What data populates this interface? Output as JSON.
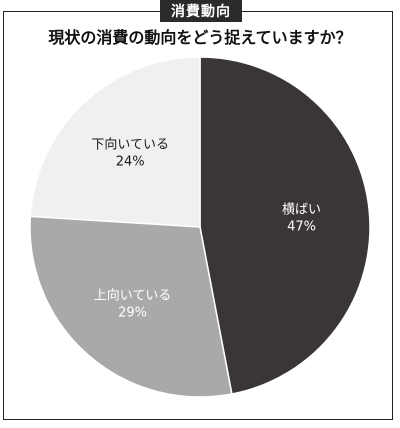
{
  "header": {
    "tag": "消費動向",
    "question": "現状の消費の動向をどう捉えていますか？"
  },
  "chart_data": {
    "type": "pie",
    "start_angle_deg": 0,
    "direction": "clockwise",
    "slices": [
      {
        "label": "横ばい",
        "value": 47,
        "value_text": "47%",
        "color": "#3a3636",
        "text_color": "#ffffff"
      },
      {
        "label": "上向いている",
        "value": 29,
        "value_text": "29%",
        "color": "#a9a9a9",
        "text_color": "#ffffff"
      },
      {
        "label": "下向いている",
        "value": 24,
        "value_text": "24%",
        "color": "#f0f0f0",
        "text_color": "#1a1a1a"
      }
    ]
  }
}
